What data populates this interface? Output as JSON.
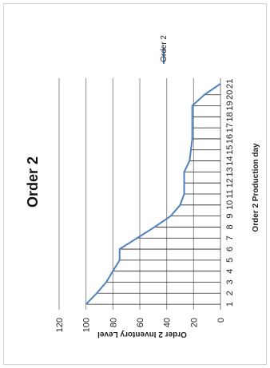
{
  "chart_data": {
    "type": "area",
    "title": "Order 2",
    "xlabel": "Order 2 Production day",
    "ylabel": "Order 2 Inventory Level",
    "x": [
      1,
      2,
      3,
      4,
      5,
      6,
      7,
      8,
      9,
      10,
      11,
      12,
      13,
      14,
      15,
      16,
      17,
      18,
      19,
      20,
      21
    ],
    "series": [
      {
        "name": "Order 2",
        "color": "#4f81bd",
        "values": [
          100,
          92,
          85,
          80,
          75,
          75,
          62,
          49,
          37,
          30,
          27,
          27,
          27,
          23,
          22,
          21,
          21,
          21,
          21,
          12,
          0
        ]
      }
    ],
    "ylim": [
      0,
      120
    ],
    "yticks": [
      "0",
      "20",
      "40",
      "60",
      "80",
      "100",
      "120"
    ],
    "xticks": [
      "1",
      "2",
      "3",
      "4",
      "5",
      "6",
      "7",
      "8",
      "9",
      "10",
      "11",
      "12",
      "13",
      "14",
      "15",
      "16",
      "17",
      "18",
      "19",
      "20",
      "21"
    ],
    "grid": true,
    "legend_position": "right",
    "orientation": "rotated-90-ccw"
  }
}
